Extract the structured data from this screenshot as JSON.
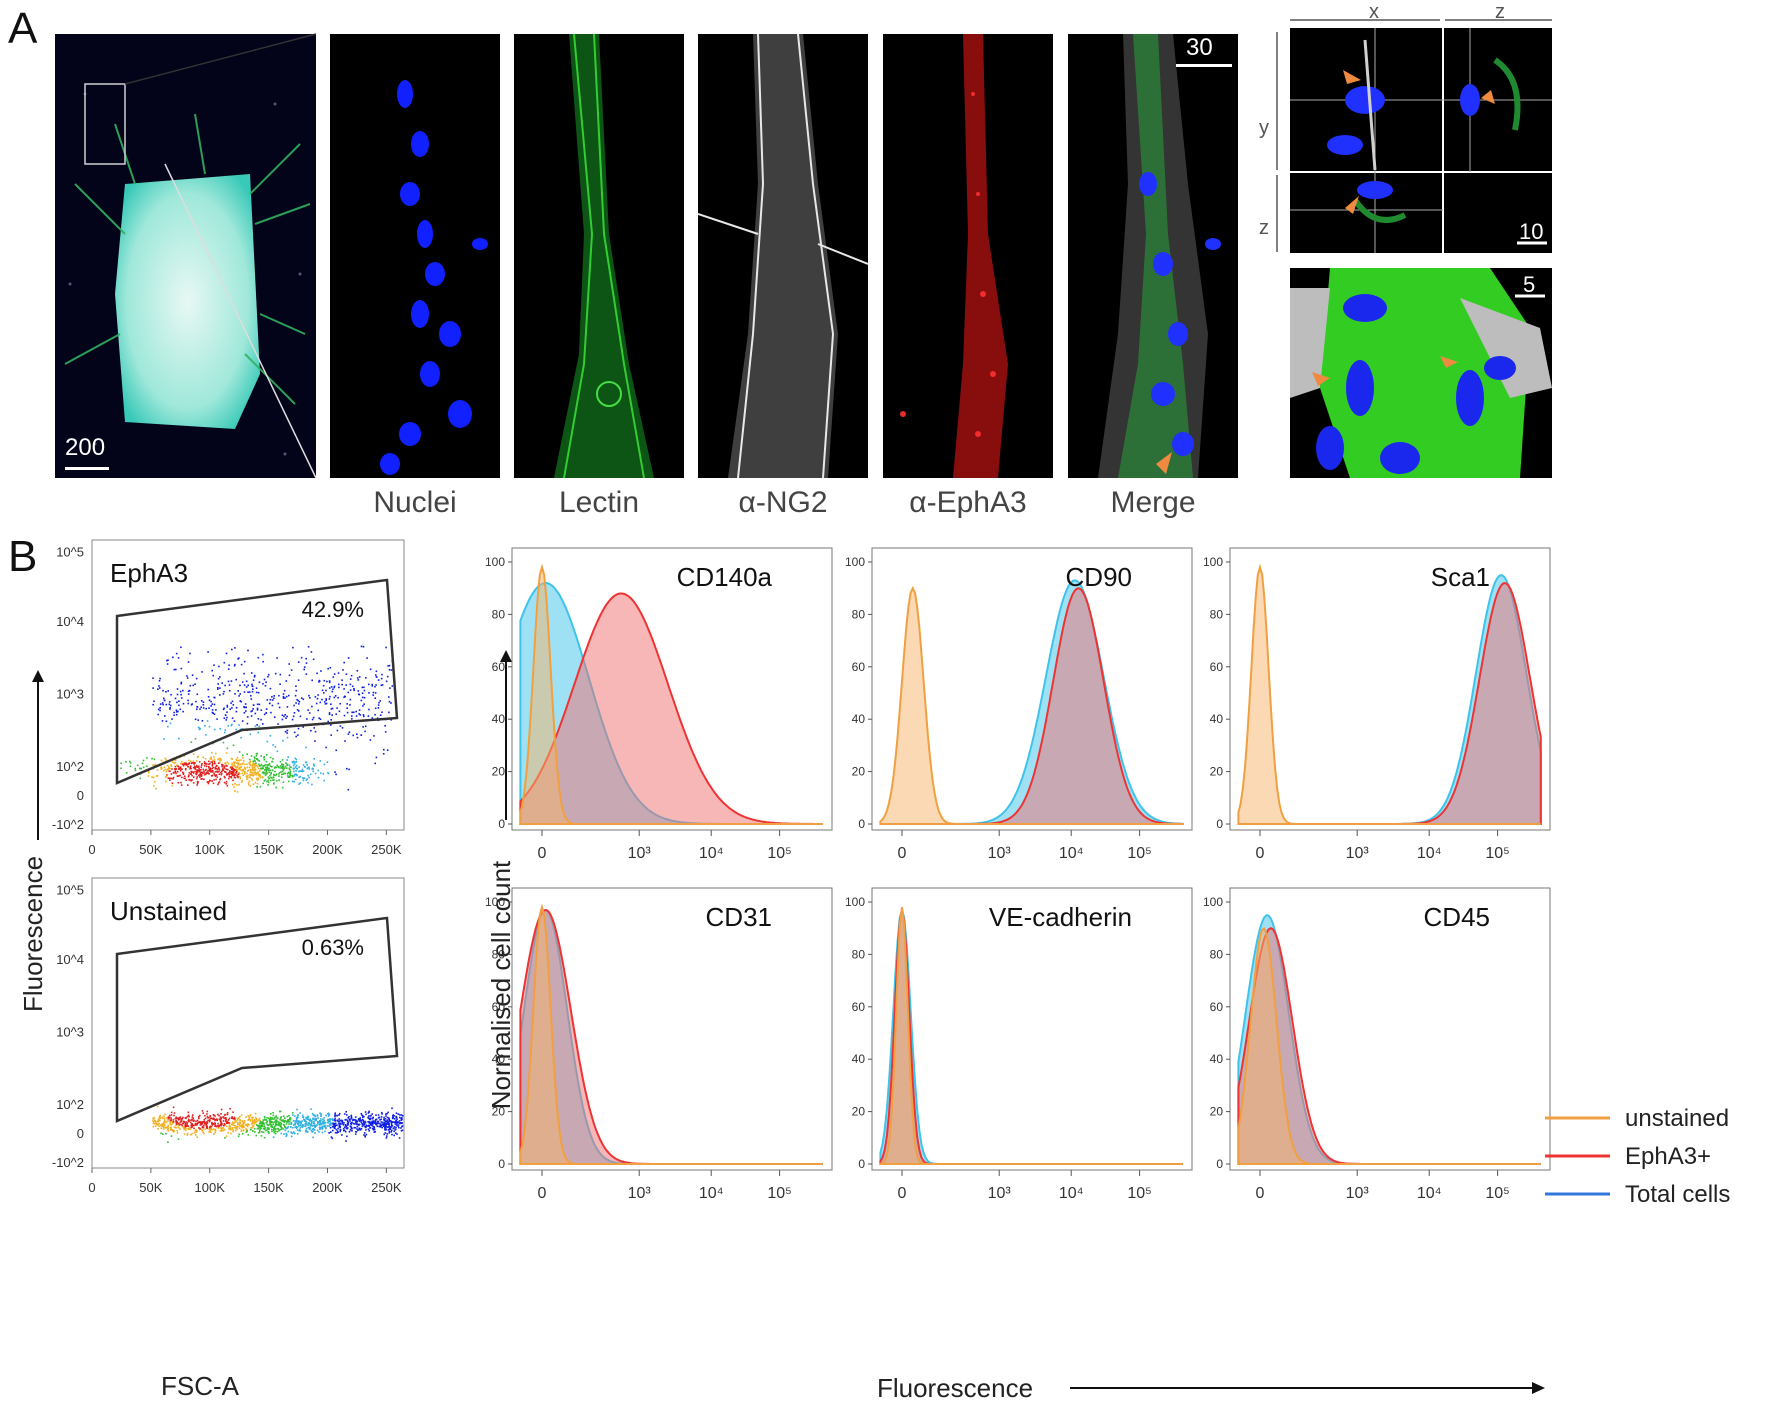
{
  "panel_a": {
    "letter": "A",
    "overview_scale": "200",
    "channels": [
      {
        "label": "Nuclei",
        "color": "#1a1aff"
      },
      {
        "label": "Lectin",
        "color": "#22cc22"
      },
      {
        "label": "α-NG2",
        "color": "#e6e6e6"
      },
      {
        "label": "α-EphA3",
        "color": "#ff2222"
      },
      {
        "label": "Merge",
        "color": "#ffffff"
      }
    ],
    "merge_scale": "30",
    "ortho": {
      "x": "x",
      "y": "y",
      "z_top": "z",
      "z_left": "z",
      "scale": "10"
    },
    "render3d_scale": "5"
  },
  "panel_b": {
    "letter": "B",
    "y_axis_title": "Fluorescence",
    "x_axis_title": "FSC-A",
    "scatter_plots": [
      {
        "label": "EphA3",
        "percent": "42.9%"
      },
      {
        "label": "Unstained",
        "percent": "0.63%"
      }
    ],
    "hist_y_title": "Normalised cell count",
    "hist_x_title": "Fluorescence",
    "legend": [
      {
        "label": "unstained",
        "color": "#f0a040"
      },
      {
        "label": "EphA3+",
        "color": "#ee3333"
      },
      {
        "label": "Total cells",
        "color": "#3377dd"
      }
    ]
  },
  "chart_data": [
    {
      "type": "scatter",
      "title": "EphA3",
      "xlabel": "FSC-A",
      "ylabel": "Fluorescence",
      "x_ticks": [
        "0",
        "50K",
        "100K",
        "150K",
        "200K",
        "250K"
      ],
      "y_ticks": [
        "-10^2",
        "0",
        "10^2",
        "10^3",
        "10^4",
        "10^5"
      ],
      "gate_percent": "42.9%"
    },
    {
      "type": "scatter",
      "title": "Unstained",
      "xlabel": "FSC-A",
      "ylabel": "Fluorescence",
      "x_ticks": [
        "0",
        "50K",
        "100K",
        "150K",
        "200K",
        "250K"
      ],
      "y_ticks": [
        "-10^2",
        "0",
        "10^2",
        "10^3",
        "10^4",
        "10^5"
      ],
      "gate_percent": "0.63%"
    },
    {
      "type": "area",
      "histograms_y_ticks": [
        "0",
        "20",
        "40",
        "60",
        "80",
        "100"
      ],
      "histograms_x_ticks": [
        "0",
        "10³",
        "10⁴",
        "10⁵"
      ],
      "panels": [
        {
          "title": "CD140a",
          "unstained": {
            "peak_pos": 0.0,
            "width": 0.12,
            "height": 98
          },
          "epha3": {
            "peak_pos": 1.1,
            "width": 0.65,
            "height": 88
          },
          "total": {
            "peak_pos": 0.05,
            "width": 0.6,
            "height": 92
          }
        },
        {
          "title": "CD90",
          "unstained": {
            "peak_pos": 0.15,
            "width": 0.15,
            "height": 90
          },
          "epha3": {
            "peak_pos": 2.45,
            "width": 0.35,
            "height": 90
          },
          "total": {
            "peak_pos": 2.4,
            "width": 0.4,
            "height": 93
          }
        },
        {
          "title": "Sca1",
          "unstained": {
            "peak_pos": 0.0,
            "width": 0.12,
            "height": 98
          },
          "epha3": {
            "peak_pos": 3.4,
            "width": 0.35,
            "height": 92
          },
          "total": {
            "peak_pos": 3.35,
            "width": 0.35,
            "height": 95
          }
        },
        {
          "title": "CD31",
          "unstained": {
            "peak_pos": 0.0,
            "width": 0.12,
            "height": 98
          },
          "epha3": {
            "peak_pos": 0.05,
            "width": 0.35,
            "height": 97
          },
          "total": {
            "peak_pos": 0.05,
            "width": 0.3,
            "height": 97
          }
        },
        {
          "title": "VE-cadherin",
          "unstained": {
            "peak_pos": 0.0,
            "width": 0.08,
            "height": 98
          },
          "epha3": {
            "peak_pos": 0.0,
            "width": 0.1,
            "height": 97
          },
          "total": {
            "peak_pos": 0.0,
            "width": 0.12,
            "height": 97
          }
        },
        {
          "title": "CD45",
          "unstained": {
            "peak_pos": 0.05,
            "width": 0.18,
            "height": 90
          },
          "epha3": {
            "peak_pos": 0.15,
            "width": 0.3,
            "height": 90
          },
          "total": {
            "peak_pos": 0.1,
            "width": 0.3,
            "height": 95
          }
        }
      ]
    }
  ]
}
